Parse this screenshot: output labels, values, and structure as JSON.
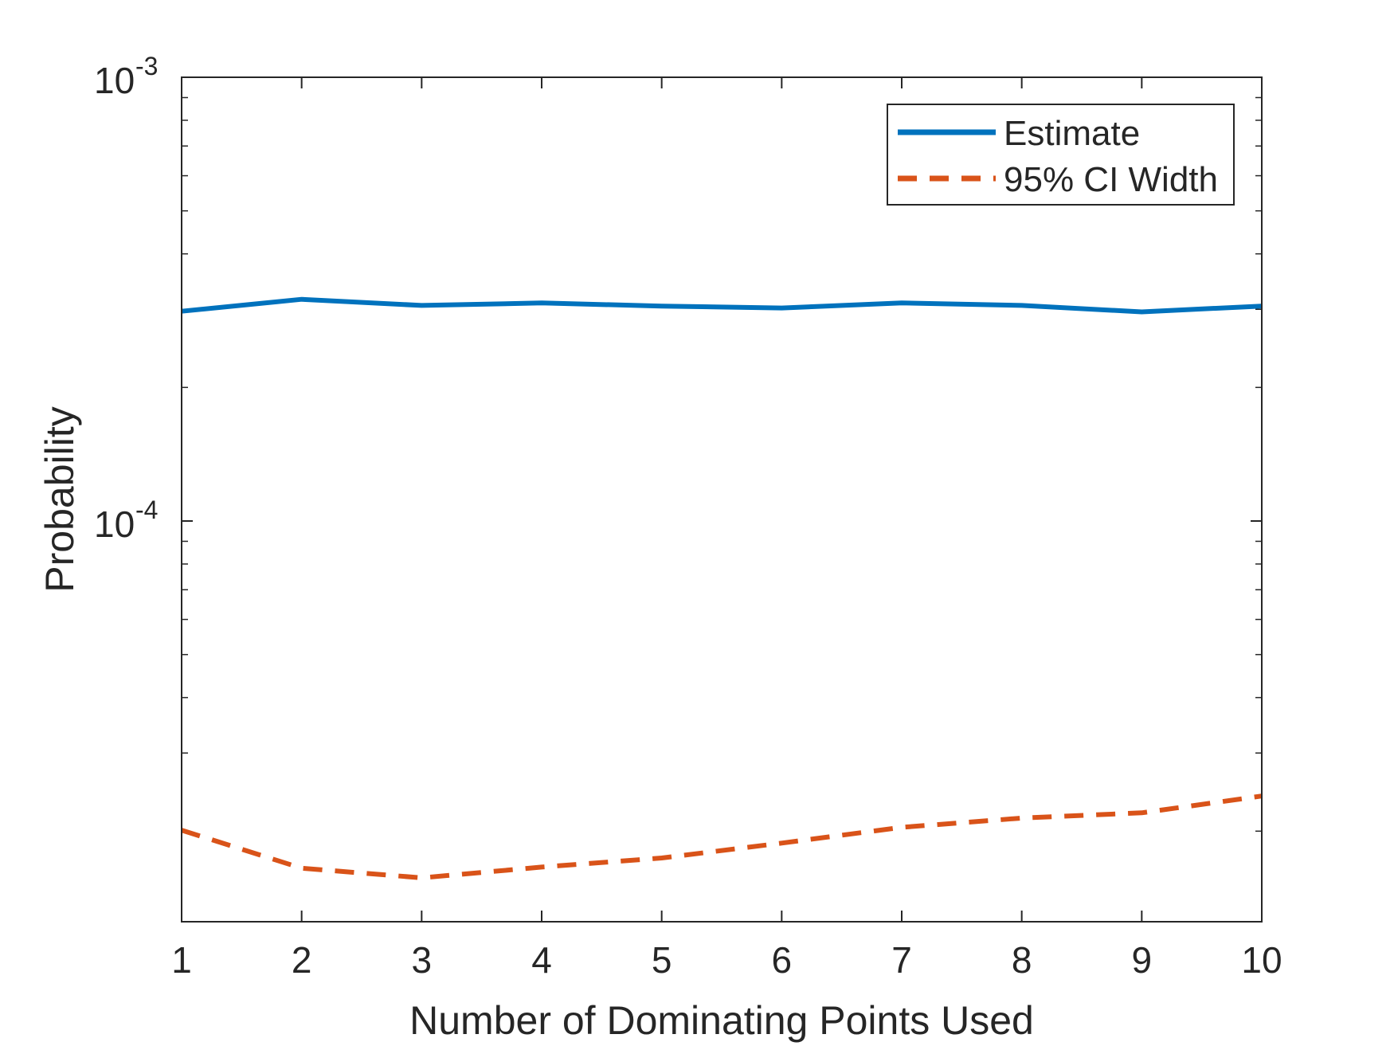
{
  "chart_data": {
    "type": "line",
    "x": [
      1,
      2,
      3,
      4,
      5,
      6,
      7,
      8,
      9,
      10
    ],
    "series": [
      {
        "name": "Estimate",
        "values": [
          0.000297,
          0.000316,
          0.000306,
          0.00031,
          0.000305,
          0.000302,
          0.00031,
          0.000306,
          0.000296,
          0.000305
        ],
        "color": "#0072BD",
        "style": "solid"
      },
      {
        "name": "95% CI Width",
        "values": [
          2.01e-05,
          1.65e-05,
          1.57e-05,
          1.66e-05,
          1.74e-05,
          1.88e-05,
          2.04e-05,
          2.14e-05,
          2.2e-05,
          2.4e-05
        ],
        "color": "#D95319",
        "style": "dashed"
      }
    ],
    "xlabel": "Number of Dominating Points Used",
    "ylabel": "Probability",
    "xlim": [
      1,
      10
    ],
    "ylim": [
      1.25e-05,
      0.001
    ],
    "yscale": "log",
    "x_tick_labels": [
      "1",
      "2",
      "3",
      "4",
      "5",
      "6",
      "7",
      "8",
      "9",
      "10"
    ],
    "y_tick_labels": [
      {
        "value": 0.0001,
        "base": "10",
        "exponent": "-4"
      },
      {
        "value": 0.001,
        "base": "10",
        "exponent": "-3"
      }
    ],
    "grid": false,
    "legend_location": "top-right"
  }
}
